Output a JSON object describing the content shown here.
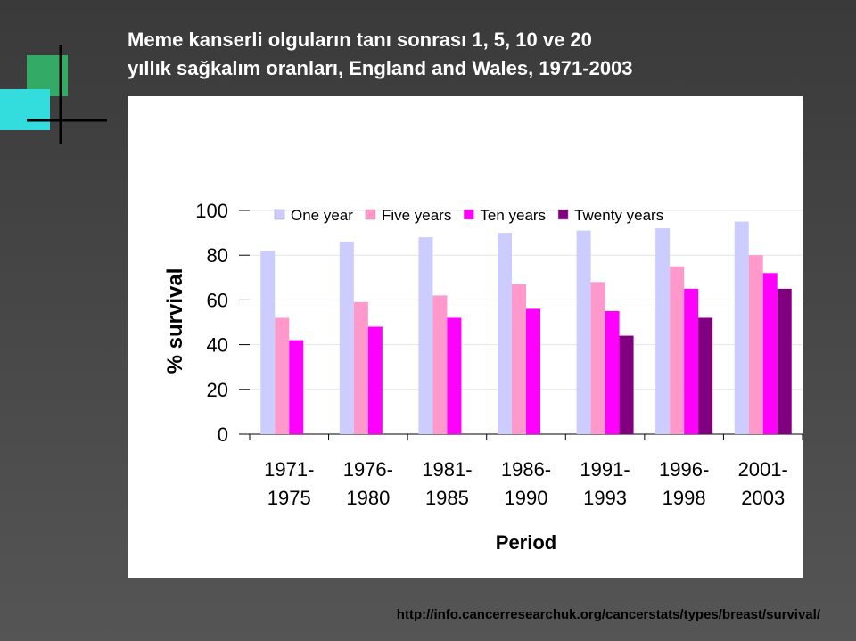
{
  "header": {
    "title_line1": "Meme kanserli olguların tanı sonrası 1, 5, 10 ve 20",
    "title_line2": "yıllık sağkalım oranları, England and Wales, 1971-2003"
  },
  "chart_data": {
    "type": "bar",
    "x_label": "Period",
    "y_label": "% survival",
    "categories": [
      "1971-1975",
      "1976-1980",
      "1981-1985",
      "1986-1990",
      "1991-1993",
      "1996-1998",
      "2001-2003"
    ],
    "series": [
      {
        "name": "One year",
        "color": "#ccccff",
        "values": [
          82,
          86,
          88,
          90,
          91,
          92,
          95
        ]
      },
      {
        "name": "Five years",
        "color": "#ff99cc",
        "values": [
          52,
          59,
          62,
          67,
          68,
          75,
          80
        ]
      },
      {
        "name": "Ten years",
        "color": "#ff00ff",
        "values": [
          42,
          48,
          52,
          56,
          55,
          65,
          72
        ]
      },
      {
        "name": "Twenty years",
        "color": "#800080",
        "values": [
          null,
          null,
          null,
          null,
          44,
          52,
          65
        ]
      }
    ],
    "ylim": [
      0,
      100
    ],
    "yticks": [
      0,
      20,
      40,
      60,
      80,
      100
    ],
    "grid": true,
    "legend": "top"
  },
  "footer": {
    "source": "http://info.cancerresearchuk.org/cancerstats/types/breast/survival/"
  }
}
